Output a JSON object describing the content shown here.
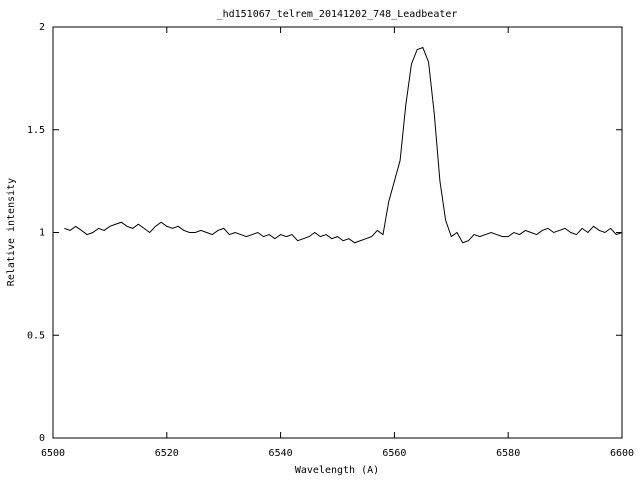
{
  "chart_data": {
    "type": "line",
    "title": "_hd151067_telrem_20141202_748_Leadbeater",
    "x_label": "Wavelength (A)",
    "y_label": "Relative intensity",
    "xlim": [
      6500,
      6600
    ],
    "ylim": [
      0,
      2
    ],
    "xticks": [
      6500,
      6520,
      6540,
      6560,
      6580,
      6600
    ],
    "yticks": [
      0,
      0.5,
      1,
      1.5,
      2
    ],
    "series": [
      {
        "color": "#000000",
        "x": [
          6502,
          6503,
          6504,
          6505,
          6506,
          6507,
          6508,
          6509,
          6510,
          6511,
          6512,
          6513,
          6514,
          6515,
          6516,
          6517,
          6518,
          6519,
          6520,
          6521,
          6522,
          6523,
          6524,
          6525,
          6526,
          6527,
          6528,
          6529,
          6530,
          6531,
          6532,
          6533,
          6534,
          6535,
          6536,
          6537,
          6538,
          6539,
          6540,
          6541,
          6542,
          6543,
          6544,
          6545,
          6546,
          6547,
          6548,
          6549,
          6550,
          6551,
          6552,
          6553,
          6554,
          6555,
          6556,
          6557,
          6558,
          6559,
          6560,
          6561,
          6562,
          6563,
          6564,
          6565,
          6566,
          6567,
          6568,
          6569,
          6570,
          6571,
          6572,
          6573,
          6574,
          6575,
          6576,
          6577,
          6578,
          6579,
          6580,
          6581,
          6582,
          6583,
          6584,
          6585,
          6586,
          6587,
          6588,
          6589,
          6590,
          6591,
          6592,
          6593,
          6594,
          6595,
          6596,
          6597,
          6598,
          6599,
          6600
        ],
        "values": [
          1.02,
          1.01,
          1.03,
          1.01,
          0.99,
          1.0,
          1.02,
          1.01,
          1.03,
          1.04,
          1.05,
          1.03,
          1.02,
          1.04,
          1.02,
          1.0,
          1.03,
          1.05,
          1.03,
          1.02,
          1.03,
          1.01,
          1.0,
          1.0,
          1.01,
          1.0,
          0.99,
          1.01,
          1.02,
          0.99,
          1.0,
          0.99,
          0.98,
          0.99,
          1.0,
          0.98,
          0.99,
          0.97,
          0.99,
          0.98,
          0.99,
          0.96,
          0.97,
          0.98,
          1.0,
          0.98,
          0.99,
          0.97,
          0.98,
          0.96,
          0.97,
          0.95,
          0.96,
          0.97,
          0.98,
          1.01,
          0.99,
          1.15,
          1.25,
          1.35,
          1.62,
          1.82,
          1.89,
          1.9,
          1.83,
          1.58,
          1.25,
          1.06,
          0.98,
          1.0,
          0.95,
          0.96,
          0.99,
          0.98,
          0.99,
          1.0,
          0.99,
          0.98,
          0.98,
          1.0,
          0.99,
          1.01,
          1.0,
          0.99,
          1.01,
          1.02,
          1.0,
          1.01,
          1.02,
          1.0,
          0.99,
          1.02,
          1.0,
          1.03,
          1.01,
          1.0,
          1.02,
          0.99,
          1.0
        ]
      }
    ]
  }
}
